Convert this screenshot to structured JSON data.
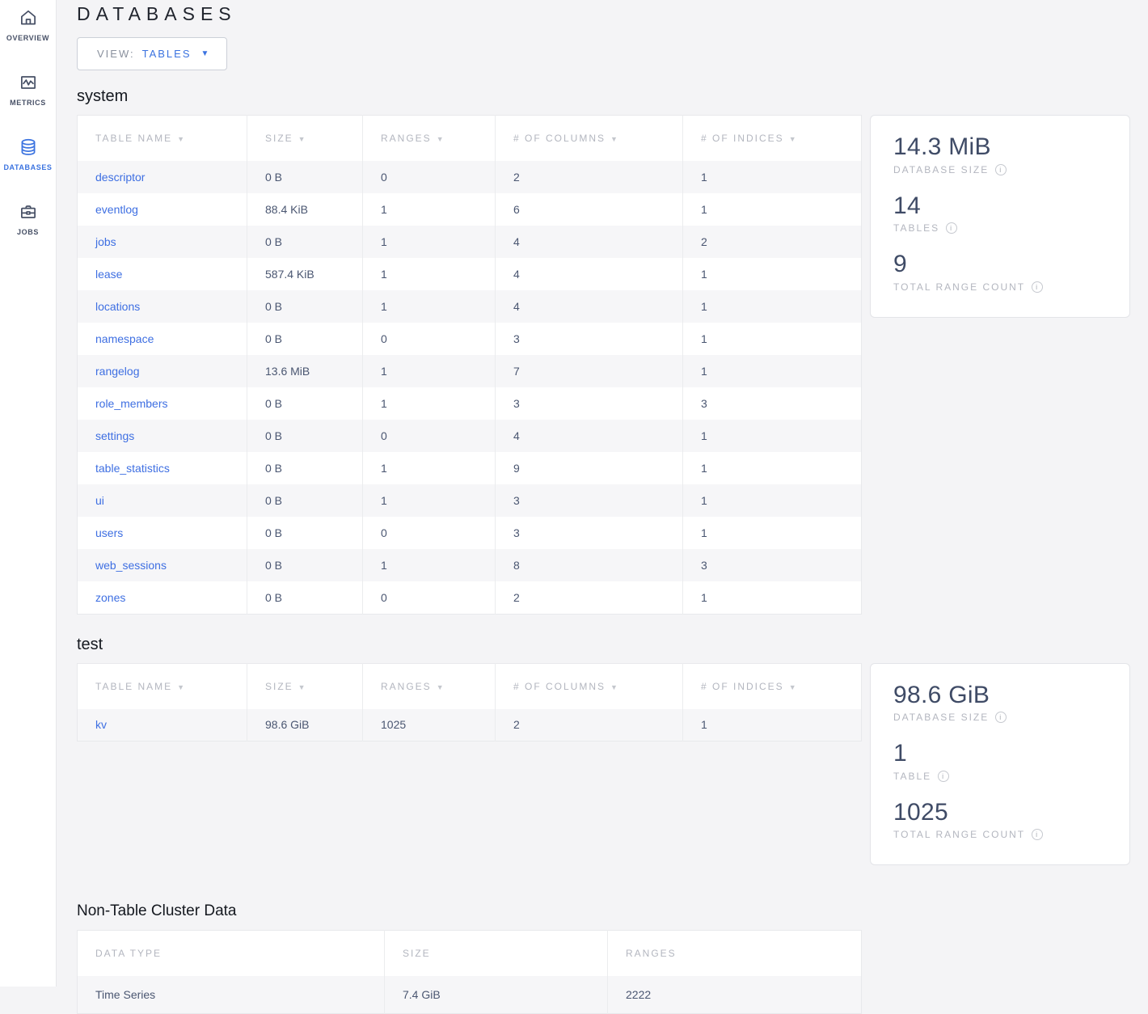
{
  "sidebar": {
    "items": [
      {
        "id": "overview",
        "label": "OVERVIEW",
        "icon": "home-icon",
        "active": false
      },
      {
        "id": "metrics",
        "label": "METRICS",
        "icon": "metrics-icon",
        "active": false
      },
      {
        "id": "databases",
        "label": "DATABASES",
        "icon": "database-icon",
        "active": true
      },
      {
        "id": "jobs",
        "label": "JOBS",
        "icon": "briefcase-icon",
        "active": false
      }
    ]
  },
  "page": {
    "title": "DATABASES"
  },
  "view_selector": {
    "label": "VIEW:",
    "value": "TABLES",
    "caret": "▼"
  },
  "databases": [
    {
      "name": "system",
      "columns": [
        "TABLE NAME",
        "SIZE",
        "RANGES",
        "# OF COLUMNS",
        "# OF INDICES"
      ],
      "rows": [
        [
          "descriptor",
          "0 B",
          "0",
          "2",
          "1"
        ],
        [
          "eventlog",
          "88.4 KiB",
          "1",
          "6",
          "1"
        ],
        [
          "jobs",
          "0 B",
          "1",
          "4",
          "2"
        ],
        [
          "lease",
          "587.4 KiB",
          "1",
          "4",
          "1"
        ],
        [
          "locations",
          "0 B",
          "1",
          "4",
          "1"
        ],
        [
          "namespace",
          "0 B",
          "0",
          "3",
          "1"
        ],
        [
          "rangelog",
          "13.6 MiB",
          "1",
          "7",
          "1"
        ],
        [
          "role_members",
          "0 B",
          "1",
          "3",
          "3"
        ],
        [
          "settings",
          "0 B",
          "0",
          "4",
          "1"
        ],
        [
          "table_statistics",
          "0 B",
          "1",
          "9",
          "1"
        ],
        [
          "ui",
          "0 B",
          "1",
          "3",
          "1"
        ],
        [
          "users",
          "0 B",
          "0",
          "3",
          "1"
        ],
        [
          "web_sessions",
          "0 B",
          "1",
          "8",
          "3"
        ],
        [
          "zones",
          "0 B",
          "0",
          "2",
          "1"
        ]
      ],
      "summary": [
        {
          "value": "14.3 MiB",
          "label": "DATABASE SIZE"
        },
        {
          "value": "14",
          "label": "TABLES"
        },
        {
          "value": "9",
          "label": "TOTAL RANGE COUNT"
        }
      ]
    },
    {
      "name": "test",
      "columns": [
        "TABLE NAME",
        "SIZE",
        "RANGES",
        "# OF COLUMNS",
        "# OF INDICES"
      ],
      "rows": [
        [
          "kv",
          "98.6 GiB",
          "1025",
          "2",
          "1"
        ]
      ],
      "summary": [
        {
          "value": "98.6 GiB",
          "label": "DATABASE SIZE"
        },
        {
          "value": "1",
          "label": "TABLE"
        },
        {
          "value": "1025",
          "label": "TOTAL RANGE COUNT"
        }
      ]
    }
  ],
  "non_table": {
    "title": "Non-Table Cluster Data",
    "columns": [
      "DATA TYPE",
      "SIZE",
      "RANGES"
    ],
    "rows": [
      [
        "Time Series",
        "7.4 GiB",
        "2222"
      ]
    ]
  },
  "colors": {
    "accent": "#3b73e0",
    "value_text": "#3f4b66",
    "muted_label": "#b3b6bf"
  }
}
